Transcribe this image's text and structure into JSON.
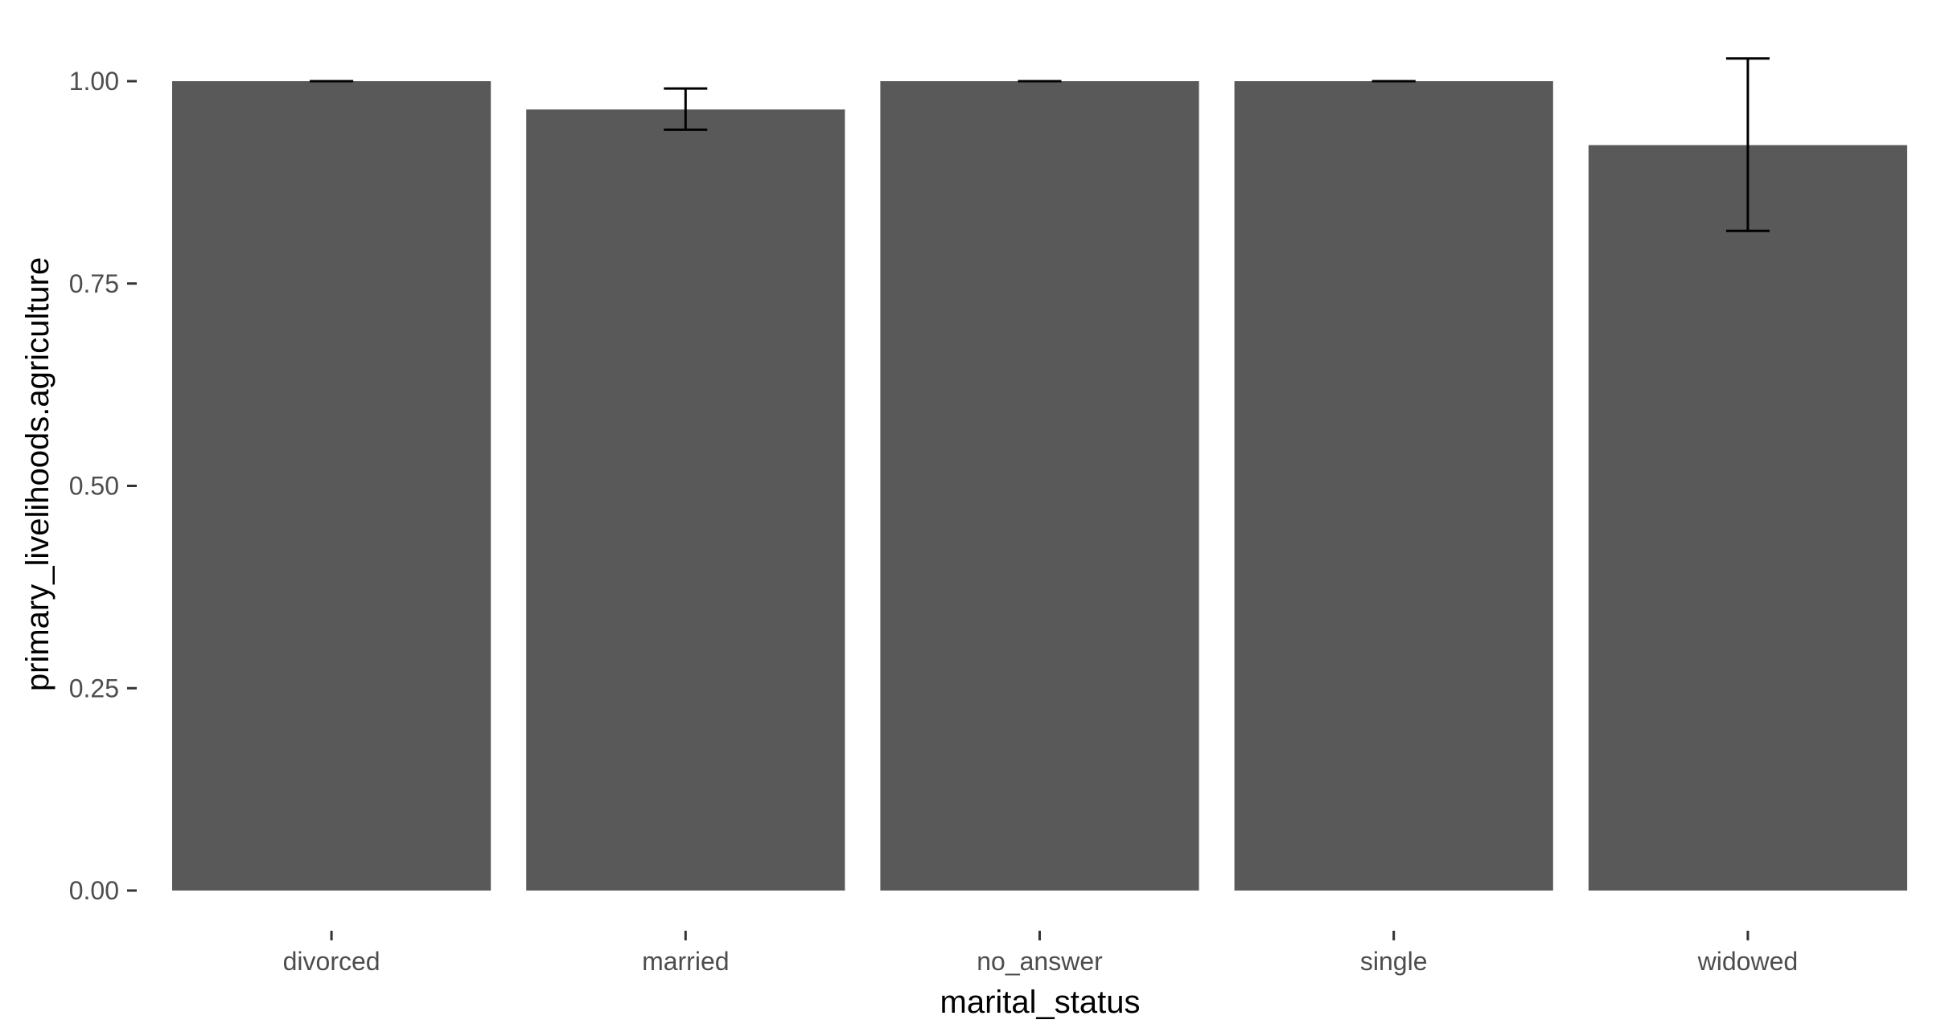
{
  "chart_data": {
    "type": "bar",
    "categories": [
      "divorced",
      "married",
      "no_answer",
      "single",
      "widowed"
    ],
    "values": [
      1.0,
      0.965,
      1.0,
      1.0,
      0.921
    ],
    "error_bars": [
      {
        "low": 1.0,
        "high": 1.0
      },
      {
        "low": 0.94,
        "high": 0.991
      },
      {
        "low": 1.0,
        "high": 1.0
      },
      {
        "low": 1.0,
        "high": 1.0
      },
      {
        "low": 0.815,
        "high": 1.028
      }
    ],
    "xlabel": "marital_status",
    "ylabel": "primary_livelihoods.agriculture",
    "ylim": [
      0,
      1.05
    ],
    "yticks": [
      0.0,
      0.25,
      0.5,
      0.75,
      1.0
    ],
    "ytick_labels": [
      "0.00",
      "0.25",
      "0.50",
      "0.75",
      "1.00"
    ],
    "grid": false,
    "legend": "none",
    "colors": {
      "bar": "#595959",
      "error_bar": "#000000",
      "tick": "#333333",
      "tick_label": "#4d4d4d"
    }
  }
}
